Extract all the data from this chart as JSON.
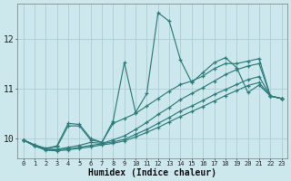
{
  "xlabel": "Humidex (Indice chaleur)",
  "bg_color": "#cce8ec",
  "grid_color": "#aacdd4",
  "line_color": "#2e7d7d",
  "xlim": [
    -0.5,
    23.5
  ],
  "ylim": [
    9.6,
    12.7
  ],
  "yticks": [
    10,
    11,
    12
  ],
  "xticks": [
    0,
    1,
    2,
    3,
    4,
    5,
    6,
    7,
    8,
    9,
    10,
    11,
    12,
    13,
    14,
    15,
    16,
    17,
    18,
    19,
    20,
    21,
    22,
    23
  ],
  "series": [
    {
      "x": [
        0,
        1,
        2,
        3,
        4,
        5,
        6,
        7,
        8,
        9,
        10,
        11,
        12,
        13,
        14,
        15,
        16,
        17,
        18,
        19,
        20,
        21,
        22,
        23
      ],
      "y": [
        9.97,
        9.87,
        9.8,
        9.83,
        10.25,
        10.25,
        9.97,
        9.92,
        10.35,
        11.52,
        10.52,
        10.9,
        12.52,
        12.35,
        11.57,
        11.12,
        11.32,
        11.52,
        11.62,
        11.42,
        10.92,
        11.07,
        10.85,
        10.8
      ]
    },
    {
      "x": [
        0,
        1,
        2,
        3,
        4,
        5,
        6,
        7,
        8,
        9,
        10,
        11,
        12,
        13,
        14,
        15,
        16,
        17,
        18,
        19,
        20,
        21,
        22,
        23
      ],
      "y": [
        9.97,
        9.87,
        9.8,
        9.85,
        10.3,
        10.28,
        10.0,
        9.92,
        10.3,
        10.4,
        10.5,
        10.65,
        10.8,
        10.95,
        11.08,
        11.15,
        11.25,
        11.4,
        11.5,
        11.5,
        11.55,
        11.6,
        10.85,
        10.8
      ]
    },
    {
      "x": [
        0,
        1,
        2,
        3,
        4,
        5,
        6,
        7,
        8,
        9,
        10,
        11,
        12,
        13,
        14,
        15,
        16,
        17,
        18,
        19,
        20,
        21,
        22,
        23
      ],
      "y": [
        9.97,
        9.85,
        9.78,
        9.78,
        9.82,
        9.86,
        9.92,
        9.9,
        9.97,
        10.05,
        10.18,
        10.32,
        10.48,
        10.62,
        10.78,
        10.9,
        11.02,
        11.15,
        11.28,
        11.38,
        11.45,
        11.5,
        10.85,
        10.8
      ]
    },
    {
      "x": [
        0,
        1,
        2,
        3,
        4,
        5,
        6,
        7,
        8,
        9,
        10,
        11,
        12,
        13,
        14,
        15,
        16,
        17,
        18,
        19,
        20,
        21,
        22,
        23
      ],
      "y": [
        9.97,
        9.85,
        9.78,
        9.77,
        9.79,
        9.82,
        9.86,
        9.89,
        9.93,
        9.98,
        10.08,
        10.18,
        10.3,
        10.42,
        10.55,
        10.65,
        10.76,
        10.88,
        10.98,
        11.08,
        11.18,
        11.24,
        10.85,
        10.8
      ]
    },
    {
      "x": [
        0,
        1,
        2,
        3,
        4,
        5,
        6,
        7,
        8,
        9,
        10,
        11,
        12,
        13,
        14,
        15,
        16,
        17,
        18,
        19,
        20,
        21,
        22,
        23
      ],
      "y": [
        9.97,
        9.85,
        9.76,
        9.75,
        9.77,
        9.8,
        9.83,
        9.87,
        9.9,
        9.95,
        10.03,
        10.12,
        10.22,
        10.33,
        10.44,
        10.54,
        10.64,
        10.75,
        10.86,
        10.96,
        11.06,
        11.12,
        10.85,
        10.8
      ]
    }
  ]
}
